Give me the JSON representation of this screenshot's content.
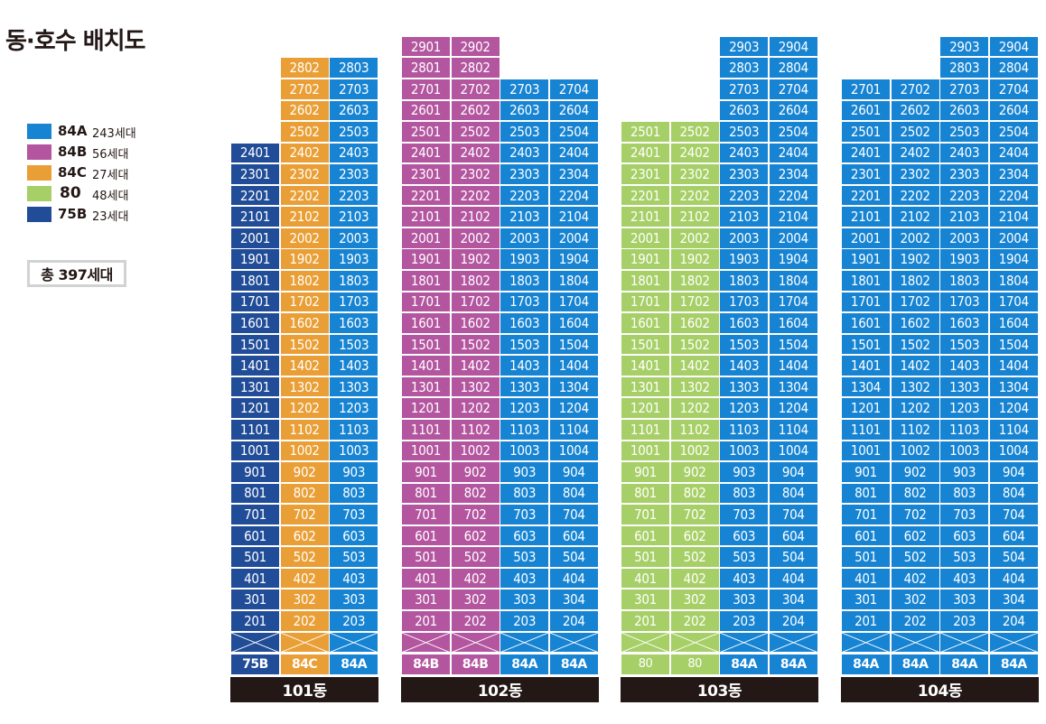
{
  "title": "동·호수 배치도",
  "colors": {
    "84A": "#1784d3",
    "84B": "#b3569f",
    "84C": "#ea9f36",
    "80": "#a7cf67",
    "75B": "#214c97"
  },
  "legend": {
    "items": [
      {
        "type": "84A",
        "count": "243세대"
      },
      {
        "type": "84B",
        "count": "56세대"
      },
      {
        "type": "84C",
        "count": "27세대"
      },
      {
        "type": "80",
        "count": "48세대"
      },
      {
        "type": "75B",
        "count": "23세대"
      }
    ],
    "total": "총 397세대"
  },
  "buildings": [
    {
      "name": "101동",
      "lines": [
        {
          "line": "01",
          "type": "75B",
          "top_floor": 24,
          "label": "75B"
        },
        {
          "line": "02",
          "type": "84C",
          "top_floor": 28,
          "label": "84C"
        },
        {
          "line": "03",
          "type": "84A",
          "top_floor": 28,
          "label": "84A"
        }
      ]
    },
    {
      "name": "102동",
      "lines": [
        {
          "line": "01",
          "type": "84B",
          "top_floor": 29,
          "label": "84B"
        },
        {
          "line": "02",
          "type": "84B",
          "top_floor": 29,
          "label": "84B"
        },
        {
          "line": "03",
          "type": "84A",
          "top_floor": 27,
          "label": "84A"
        },
        {
          "line": "04",
          "type": "84A",
          "top_floor": 27,
          "label": "84A"
        }
      ]
    },
    {
      "name": "103동",
      "lines": [
        {
          "line": "01",
          "type": "80",
          "top_floor": 25,
          "label": "80"
        },
        {
          "line": "02",
          "type": "80",
          "top_floor": 25,
          "label": "80"
        },
        {
          "line": "03",
          "type": "84A",
          "top_floor": 29,
          "label": "84A"
        },
        {
          "line": "04",
          "type": "84A",
          "top_floor": 29,
          "label": "84A"
        }
      ]
    },
    {
      "name": "104동",
      "lines": [
        {
          "line": "01",
          "type": "84A",
          "top_floor": 27,
          "label": "84A"
        },
        {
          "line": "02",
          "type": "84A",
          "top_floor": 27,
          "label": "84A"
        },
        {
          "line": "03",
          "type": "84A",
          "top_floor": 29,
          "label": "84A"
        },
        {
          "line": "04",
          "type": "84A",
          "top_floor": 29,
          "label": "84A"
        }
      ],
      "overrides": {
        "13-01": "1304"
      }
    }
  ]
}
